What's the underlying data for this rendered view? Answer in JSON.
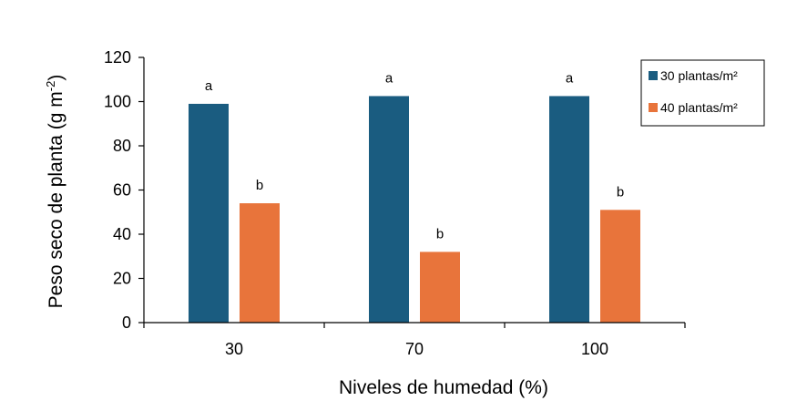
{
  "chart_data": {
    "type": "bar",
    "categories": [
      "30",
      "70",
      "100"
    ],
    "series": [
      {
        "name": "30 plantas/m²",
        "color": "#1a5c80",
        "values": [
          99,
          102.5,
          102.5
        ],
        "labels": [
          "a",
          "a",
          "a"
        ]
      },
      {
        "name": "40 plantas/m²",
        "color": "#e8743b",
        "values": [
          54,
          32,
          51
        ],
        "labels": [
          "b",
          "b",
          "b"
        ]
      }
    ],
    "xlabel": "Niveles de humedad (%)",
    "ylabel_main": "Peso seco de planta  (g m",
    "ylabel_exp": "-2",
    "ylabel_close": ")",
    "ylim": [
      0,
      120
    ],
    "yticks": [
      0,
      20,
      40,
      60,
      80,
      100,
      120
    ],
    "legend_position": "top-right",
    "grid": false
  }
}
